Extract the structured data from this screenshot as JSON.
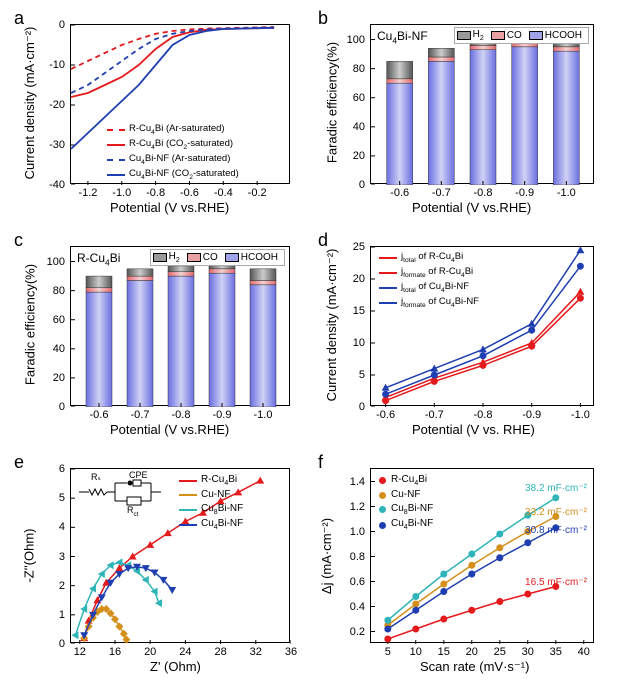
{
  "panel_labels": {
    "a": "a",
    "b": "b",
    "c": "c",
    "d": "d",
    "e": "e",
    "f": "f"
  },
  "panel_a": {
    "type": "line",
    "title": "",
    "xlabel": "Potential (V vs.RHE)",
    "ylabel": "Current density  (mA·cm⁻²)",
    "xlim": [
      -1.3,
      0.0
    ],
    "ylim": [
      -40,
      0
    ],
    "xticks": [
      -1.2,
      -1.0,
      -0.8,
      -0.6,
      -0.4,
      -0.2
    ],
    "yticks": [
      -40,
      -30,
      -20,
      -10,
      0
    ],
    "series": [
      {
        "name": "R-Cu₄Bi (Ar-saturated)",
        "color": "#e41a1c",
        "dash": "5,4",
        "x": [
          -1.3,
          -1.2,
          -1.1,
          -1.0,
          -0.9,
          -0.8,
          -0.7,
          -0.6,
          -0.5,
          -0.4,
          -0.3,
          -0.2,
          -0.1
        ],
        "y": [
          -11,
          -9,
          -7,
          -5,
          -3.5,
          -2.2,
          -1.5,
          -1.1,
          -0.9,
          -0.8,
          -0.7,
          -0.6,
          -0.5
        ]
      },
      {
        "name": "R-Cu₄Bi (CO₂-saturated)",
        "color": "#e41a1c",
        "dash": "",
        "x": [
          -1.3,
          -1.2,
          -1.1,
          -1.0,
          -0.9,
          -0.8,
          -0.7,
          -0.6,
          -0.5,
          -0.4,
          -0.3,
          -0.2,
          -0.1
        ],
        "y": [
          -18,
          -17,
          -15,
          -13,
          -10,
          -6,
          -3,
          -1.8,
          -1.2,
          -1.0,
          -0.9,
          -0.8,
          -0.7
        ]
      },
      {
        "name": "Cu₄Bi-NF (Ar-saturated)",
        "color": "#1f3fb0",
        "dash": "5,4",
        "x": [
          -1.3,
          -1.2,
          -1.1,
          -1.0,
          -0.9,
          -0.8,
          -0.7,
          -0.6,
          -0.5,
          -0.4,
          -0.3,
          -0.2,
          -0.1
        ],
        "y": [
          -17,
          -15,
          -12,
          -9,
          -6,
          -3.5,
          -2.2,
          -1.5,
          -1.1,
          -0.9,
          -0.8,
          -0.7,
          -0.6
        ]
      },
      {
        "name": "Cu₄Bi-NF (CO₂-saturated)",
        "color": "#1f3fb0",
        "dash": "",
        "x": [
          -1.3,
          -1.2,
          -1.1,
          -1.0,
          -0.9,
          -0.8,
          -0.7,
          -0.6,
          -0.5,
          -0.4,
          -0.3,
          -0.2,
          -0.1
        ],
        "y": [
          -31,
          -27,
          -23,
          -19,
          -15,
          -10,
          -5,
          -2.5,
          -1.5,
          -1.0,
          -0.9,
          -0.8,
          -0.7
        ]
      }
    ],
    "legend_pos": "bottom-center"
  },
  "panel_b": {
    "type": "stacked-bar",
    "title_text": "Cu₄Bi-NF",
    "xlabel": "Potential (V vs.RHE)",
    "ylabel": "Faradic efficiency(%)",
    "xlim": [
      0,
      5
    ],
    "ylim": [
      0,
      110
    ],
    "yticks": [
      0,
      20,
      40,
      60,
      80,
      100
    ],
    "categories": [
      "-0.6",
      "-0.7",
      "-0.8",
      "-0.9",
      "-1.0"
    ],
    "stacks": [
      {
        "name": "HCOOH",
        "color_l": "#6a6ee0",
        "color_r": "#d0d2f5",
        "values": [
          70,
          85,
          93,
          95,
          92
        ]
      },
      {
        "name": "CO",
        "color_l": "#e0696e",
        "color_r": "#f5d0d2",
        "values": [
          3,
          3,
          3,
          3,
          3
        ]
      },
      {
        "name": "H₂",
        "color_l": "#555555",
        "color_r": "#cccccc",
        "values": [
          12,
          6,
          4,
          3,
          5
        ]
      }
    ],
    "legend_items": [
      {
        "label": "H₂",
        "color": "#999999"
      },
      {
        "label": "CO",
        "color": "#e8a0a3"
      },
      {
        "label": "HCOOH",
        "color": "#a0a3e8"
      }
    ]
  },
  "panel_c": {
    "type": "stacked-bar",
    "title_text": "R-Cu₄Bi",
    "xlabel": "Potential (V vs.RHE)",
    "ylabel": "Faradic efficiency(%)",
    "xlim": [
      0,
      5
    ],
    "ylim": [
      0,
      110
    ],
    "yticks": [
      0,
      20,
      40,
      60,
      80,
      100
    ],
    "categories": [
      "-0.6",
      "-0.7",
      "-0.8",
      "-0.9",
      "-1.0"
    ],
    "stacks": [
      {
        "name": "HCOOH",
        "color_l": "#6a6ee0",
        "color_r": "#d0d2f5",
        "values": [
          79,
          87,
          90,
          92,
          84
        ]
      },
      {
        "name": "CO",
        "color_l": "#e0696e",
        "color_r": "#f5d0d2",
        "values": [
          3,
          3,
          3,
          3,
          3
        ]
      },
      {
        "name": "H₂",
        "color_l": "#555555",
        "color_r": "#cccccc",
        "values": [
          8,
          5,
          4,
          3,
          8
        ]
      }
    ],
    "legend_items": [
      {
        "label": "H₂",
        "color": "#999999"
      },
      {
        "label": "CO",
        "color": "#e8a0a3"
      },
      {
        "label": "HCOOH",
        "color": "#a0a3e8"
      }
    ]
  },
  "panel_d": {
    "type": "line",
    "xlabel": "Potential (V vs. RHE)",
    "ylabel": "Current density (mA·cm⁻²)",
    "xticks_labels": [
      "-0.6",
      "-0.7",
      "-0.8",
      "-0.9",
      "-1.0"
    ],
    "yticks": [
      0,
      5,
      10,
      15,
      20,
      25
    ],
    "series": [
      {
        "name": "jₜₒₜₐₗ of R-Cu₄Bi",
        "color": "#e41a1c",
        "marker": "triangle",
        "x": [
          0,
          1,
          2,
          3,
          4
        ],
        "y": [
          1.5,
          4.5,
          7,
          10,
          18
        ]
      },
      {
        "name": "jformate of R-Cu₄Bi",
        "color": "#e41a1c",
        "marker": "circle",
        "x": [
          0,
          1,
          2,
          3,
          4
        ],
        "y": [
          1,
          4,
          6.5,
          9.5,
          17
        ]
      },
      {
        "name": "jₜₒₜₐₗ of Cu₄Bi-NF",
        "color": "#1f3fb0",
        "marker": "triangle",
        "x": [
          0,
          1,
          2,
          3,
          4
        ],
        "y": [
          3,
          6,
          9,
          13,
          24.5
        ]
      },
      {
        "name": "jformate of Cu₄Bi-NF",
        "color": "#1f3fb0",
        "marker": "circle",
        "x": [
          0,
          1,
          2,
          3,
          4
        ],
        "y": [
          2,
          5,
          8,
          12,
          22
        ]
      }
    ]
  },
  "panel_e": {
    "type": "line",
    "xlabel": "Z' (Ohm)",
    "ylabel": "-Z''(Ohm)",
    "xticks": [
      12,
      16,
      20,
      24,
      28,
      32,
      36
    ],
    "yticks": [
      0,
      1,
      2,
      3,
      4,
      5,
      6
    ],
    "circuit_labels": {
      "Rs": "Rₛ",
      "CPE": "CPE",
      "Rct": "Rct"
    },
    "series": [
      {
        "name": "R-Cu₄Bi",
        "color": "#e41a1c",
        "marker": "triangle",
        "x": [
          12.5,
          13,
          14,
          15,
          16.5,
          18,
          20,
          22,
          24,
          26,
          28,
          30,
          32.5
        ],
        "y": [
          0.2,
          0.8,
          1.5,
          2.1,
          2.6,
          3.0,
          3.4,
          3.8,
          4.2,
          4.5,
          4.9,
          5.2,
          5.6
        ]
      },
      {
        "name": "Cu-NF",
        "color": "#d58f1b",
        "marker": "diamond",
        "x": [
          12.5,
          13,
          13.5,
          14,
          14.5,
          15,
          15.5,
          16,
          16.5,
          17,
          17.3
        ],
        "y": [
          0.2,
          0.6,
          0.9,
          1.1,
          1.2,
          1.2,
          1.05,
          0.85,
          0.6,
          0.35,
          0.15
        ]
      },
      {
        "name": "Cu₈Bi-NF",
        "color": "#2fb4b8",
        "marker": "triangle-left",
        "x": [
          11.5,
          12.5,
          13.5,
          14.5,
          15.5,
          16.5,
          17.5,
          18.5,
          19.5,
          20.5,
          21
        ],
        "y": [
          0.3,
          1.2,
          1.9,
          2.4,
          2.7,
          2.8,
          2.7,
          2.5,
          2.2,
          1.8,
          1.4
        ]
      },
      {
        "name": "Cu₄Bi-NF",
        "color": "#1f3fb0",
        "marker": "triangle-down",
        "x": [
          12.5,
          13.5,
          14.5,
          15.5,
          16.5,
          17.5,
          18.5,
          19.5,
          20.5,
          21.5,
          22.5
        ],
        "y": [
          0.3,
          1.0,
          1.6,
          2.1,
          2.4,
          2.6,
          2.65,
          2.6,
          2.45,
          2.2,
          1.85
        ]
      }
    ]
  },
  "panel_f": {
    "type": "line",
    "xlabel": "Scan rate (mV·s⁻¹)",
    "ylabel": "Δj (mA·cm⁻²)",
    "xticks": [
      5,
      10,
      15,
      20,
      25,
      30,
      35,
      40
    ],
    "yticks": [
      0.2,
      0.4,
      0.6,
      0.8,
      1.0,
      1.2,
      1.4
    ],
    "series": [
      {
        "name": "R-Cu₄Bi",
        "color": "#e41a1c",
        "marker": "circle",
        "x": [
          5,
          10,
          15,
          20,
          25,
          30,
          35
        ],
        "y": [
          0.14,
          0.22,
          0.3,
          0.37,
          0.44,
          0.5,
          0.56
        ],
        "annot": "16.5 mF·cm⁻²",
        "annot_color": "#e41a1c"
      },
      {
        "name": "Cu-NF",
        "color": "#d58f1b",
        "marker": "circle",
        "x": [
          5,
          10,
          15,
          20,
          25,
          30,
          35
        ],
        "y": [
          0.25,
          0.42,
          0.58,
          0.73,
          0.87,
          1.0,
          1.12
        ],
        "annot": "33.2 mF·cm⁻²",
        "annot_color": "#d58f1b"
      },
      {
        "name": "Cu₈Bi-NF",
        "color": "#2fb4b8",
        "marker": "circle",
        "x": [
          5,
          10,
          15,
          20,
          25,
          30,
          35
        ],
        "y": [
          0.29,
          0.48,
          0.66,
          0.82,
          0.98,
          1.13,
          1.27
        ],
        "annot": "38.2 mF·cm⁻²",
        "annot_color": "#2fb4b8"
      },
      {
        "name": "Cu₄Bi-NF",
        "color": "#1f3fb0",
        "marker": "circle",
        "x": [
          5,
          10,
          15,
          20,
          25,
          30,
          35
        ],
        "y": [
          0.22,
          0.37,
          0.52,
          0.66,
          0.79,
          0.91,
          1.03
        ],
        "annot": "30.8 mF·cm⁻²",
        "annot_color": "#1f3fb0"
      }
    ]
  },
  "layout": {
    "label_fontsize": 18,
    "axis_fontsize": 13,
    "tick_fontsize": 11,
    "legend_fontsize": 10
  }
}
